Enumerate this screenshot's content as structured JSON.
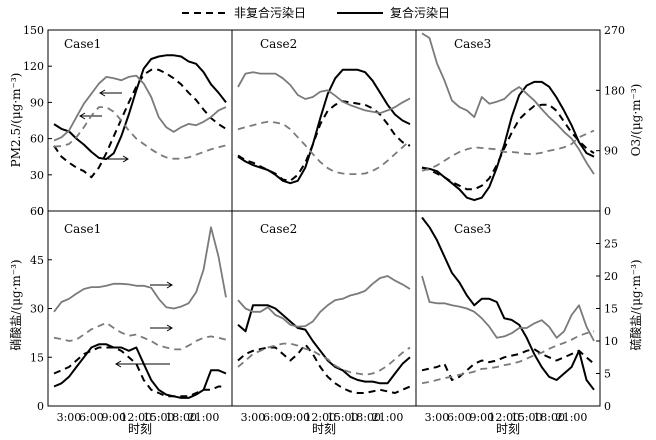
{
  "legend": [
    {
      "label": "非复合污染日",
      "style": "dashed"
    },
    {
      "label": "复合污染日",
      "style": "solid"
    }
  ],
  "colors": {
    "black": "#000000",
    "gray": "#7a7a7a"
  },
  "chart_data": [
    {
      "type": "line",
      "title": "",
      "xlabel": "时刻",
      "ylabel_left": "PM2.5/(μg·m⁻³)",
      "ylabel_right": "O3/(μg·m⁻³)",
      "ylim_left": [
        0,
        150
      ],
      "ylim_right": [
        0,
        270
      ],
      "yticks_left": [
        0,
        30,
        60,
        90,
        120,
        150
      ],
      "yticks_right": [
        0,
        90,
        180,
        270
      ],
      "x": [
        1,
        2,
        3,
        4,
        5,
        6,
        7,
        8,
        9,
        10,
        11,
        12,
        13,
        14,
        15,
        16,
        17,
        18,
        19,
        20,
        21,
        22,
        23,
        24
      ],
      "panels": [
        {
          "name": "Case1",
          "series": [
            {
              "name": "PM2.5 非复合污染日",
              "axis": "left",
              "color": "black",
              "style": "dashed",
              "values": [
                54,
                45,
                40,
                36,
                33,
                28,
                36,
                48,
                62,
                76,
                90,
                103,
                113,
                117,
                117,
                114,
                110,
                105,
                98,
                92,
                84,
                77,
                72,
                68
              ]
            },
            {
              "name": "PM2.5 复合污染日",
              "axis": "left",
              "color": "black",
              "style": "solid",
              "values": [
                72,
                68,
                66,
                60,
                55,
                49,
                44,
                43,
                48,
                62,
                80,
                100,
                118,
                126,
                128,
                129,
                129,
                128,
                124,
                122,
                115,
                105,
                98,
                90
              ]
            },
            {
              "name": "O3 非复合污染日",
              "axis": "right",
              "color": "gray",
              "style": "dashed",
              "values": [
                96,
                97,
                100,
                110,
                125,
                142,
                155,
                155,
                148,
                135,
                120,
                108,
                100,
                92,
                85,
                80,
                78,
                78,
                80,
                84,
                88,
                92,
                95,
                98
              ]
            },
            {
              "name": "O3 复合污染日",
              "axis": "right",
              "color": "gray",
              "style": "solid",
              "values": [
                105,
                110,
                120,
                140,
                160,
                175,
                190,
                200,
                198,
                195,
                200,
                202,
                190,
                170,
                140,
                125,
                118,
                125,
                130,
                128,
                133,
                140,
                150,
                155
              ]
            }
          ]
        },
        {
          "name": "Case2",
          "series": [
            {
              "name": "PM2.5 非复合污染日",
              "axis": "left",
              "color": "black",
              "style": "dashed",
              "values": [
                46,
                42,
                40,
                37,
                34,
                31,
                26,
                25,
                30,
                40,
                55,
                72,
                83,
                88,
                91,
                90,
                89,
                88,
                85,
                80,
                72,
                63,
                57,
                54
              ]
            },
            {
              "name": "PM2.5 复合污染日",
              "axis": "left",
              "color": "black",
              "style": "solid",
              "values": [
                45,
                41,
                38,
                36,
                34,
                30,
                25,
                23,
                25,
                36,
                55,
                77,
                97,
                110,
                117,
                117,
                117,
                115,
                108,
                98,
                88,
                80,
                75,
                72
              ]
            },
            {
              "name": "O3 非复合污染日",
              "axis": "right",
              "color": "gray",
              "style": "dashed",
              "values": [
                122,
                125,
                128,
                131,
                133,
                132,
                130,
                122,
                110,
                98,
                85,
                73,
                64,
                58,
                56,
                55,
                55,
                56,
                60,
                66,
                75,
                85,
                95,
                105
              ]
            },
            {
              "name": "O3 复合污染日",
              "axis": "right",
              "color": "gray",
              "style": "solid",
              "values": [
                185,
                205,
                207,
                205,
                205,
                205,
                198,
                188,
                173,
                167,
                170,
                178,
                180,
                172,
                163,
                158,
                154,
                150,
                148,
                146,
                150,
                155,
                162,
                168
              ]
            }
          ]
        },
        {
          "name": "Case3",
          "series": [
            {
              "name": "PM2.5 非复合污染日",
              "axis": "left",
              "color": "black",
              "style": "dashed",
              "values": [
                36,
                34,
                31,
                28,
                24,
                21,
                18,
                18,
                21,
                27,
                38,
                52,
                65,
                76,
                82,
                87,
                88,
                88,
                83,
                74,
                65,
                58,
                52,
                48
              ]
            },
            {
              "name": "PM2.5 复合污染日",
              "axis": "left",
              "color": "black",
              "style": "solid",
              "values": [
                36,
                35,
                33,
                28,
                23,
                18,
                11,
                9,
                11,
                20,
                36,
                55,
                78,
                96,
                104,
                107,
                107,
                103,
                94,
                83,
                71,
                57,
                48,
                45
              ]
            },
            {
              "name": "O3 非复合污染日",
              "axis": "right",
              "color": "gray",
              "style": "dashed",
              "values": [
                60,
                63,
                68,
                75,
                82,
                88,
                92,
                95,
                94,
                93,
                92,
                88,
                88,
                87,
                85,
                85,
                87,
                90,
                92,
                95,
                100,
                110,
                115,
                120
              ]
            },
            {
              "name": "O3 复合污染日",
              "axis": "right",
              "color": "gray",
              "style": "solid",
              "values": [
                265,
                258,
                220,
                195,
                165,
                155,
                150,
                140,
                170,
                160,
                163,
                167,
                178,
                185,
                175,
                165,
                152,
                140,
                130,
                118,
                108,
                92,
                72,
                55
              ]
            }
          ]
        }
      ]
    },
    {
      "type": "line",
      "title": "",
      "xlabel": "时刻",
      "ylabel_left": "硝酸盐/(μg·m⁻³)",
      "ylabel_right": "硫酸盐/(μg·m⁻³)",
      "ylim_left": [
        0,
        60
      ],
      "ylim_right": [
        0,
        30
      ],
      "yticks_left": [
        0,
        15,
        30,
        45,
        60
      ],
      "yticks_right": [
        0,
        5,
        10,
        15,
        20,
        25
      ],
      "x": [
        1,
        2,
        3,
        4,
        5,
        6,
        7,
        8,
        9,
        10,
        11,
        12,
        13,
        14,
        15,
        16,
        17,
        18,
        19,
        20,
        21,
        22,
        23,
        24
      ],
      "xticks": [
        "3:00",
        "6:00",
        "9:00",
        "12:00",
        "15:00",
        "18:00",
        "21:00"
      ],
      "panels": [
        {
          "name": "Case1",
          "series": [
            {
              "name": "硝酸盐 非复合污染日",
              "axis": "left",
              "color": "black",
              "style": "dashed",
              "values": [
                10,
                11,
                12,
                14,
                16,
                17,
                18,
                18,
                18,
                17,
                15,
                13,
                8,
                5,
                4,
                3,
                3,
                3,
                3,
                4,
                5,
                5,
                6,
                6
              ]
            },
            {
              "name": "硝酸盐 复合污染日",
              "axis": "left",
              "color": "black",
              "style": "solid",
              "values": [
                6,
                7,
                9,
                12,
                15,
                18,
                19,
                19,
                18,
                18,
                17,
                18,
                13,
                8,
                5,
                3.5,
                3,
                2.5,
                2.5,
                3.5,
                5,
                11,
                11,
                10
              ]
            },
            {
              "name": "硫酸盐 非复合污染日",
              "axis": "right",
              "color": "gray",
              "style": "dashed",
              "values": [
                10.5,
                10.3,
                10,
                10.2,
                11,
                11.8,
                12.3,
                12.8,
                12,
                11.3,
                10.8,
                11,
                10.5,
                10,
                9.3,
                9,
                8.7,
                8.7,
                9.3,
                10,
                10.5,
                10.7,
                10.5,
                10.2
              ]
            },
            {
              "name": "硫酸盐 复合污染日",
              "axis": "right",
              "color": "gray",
              "style": "solid",
              "values": [
                14.5,
                16,
                16.5,
                17.3,
                18,
                18.3,
                18.3,
                18.5,
                18.8,
                18.8,
                18.7,
                18.5,
                18.5,
                18.2,
                16.5,
                15.2,
                15,
                15.3,
                15.8,
                17.5,
                21,
                27.5,
                23,
                16.7
              ]
            }
          ]
        },
        {
          "name": "Case2",
          "series": [
            {
              "name": "硝酸盐 非复合污染日",
              "axis": "left",
              "color": "black",
              "style": "dashed",
              "values": [
                14,
                16,
                17,
                17.5,
                18,
                18,
                16,
                14,
                16,
                19,
                16,
                12,
                9,
                7,
                5.5,
                4.5,
                4,
                4,
                4.5,
                5,
                4.5,
                4,
                5,
                6
              ]
            },
            {
              "name": "硝酸盐 复合污染日",
              "axis": "left",
              "color": "black",
              "style": "solid",
              "values": [
                25,
                23,
                31,
                31,
                31,
                30,
                28,
                26,
                24,
                23.5,
                20,
                17,
                14,
                12,
                11,
                9,
                8,
                7.5,
                7.5,
                7,
                7,
                10,
                13,
                15
              ]
            },
            {
              "name": "硫酸盐 非复合污染日",
              "axis": "right",
              "color": "gray",
              "style": "dashed",
              "values": [
                6,
                7,
                8,
                8.5,
                9,
                9.3,
                9.6,
                9.6,
                9.3,
                8.8,
                8.5,
                7.8,
                7.2,
                6.2,
                5.6,
                5.2,
                5,
                4.8,
                5,
                5.5,
                6.2,
                7.2,
                8.2,
                9
              ]
            },
            {
              "name": "硫酸盐 复合污染日",
              "axis": "right",
              "color": "gray",
              "style": "solid",
              "values": [
                16.3,
                15,
                14.5,
                14.5,
                15.2,
                14,
                13.5,
                12.5,
                12.2,
                12.3,
                13,
                14.5,
                15.5,
                16.3,
                16.5,
                17,
                17.3,
                17.7,
                18.8,
                19.7,
                20,
                19.3,
                18.7,
                18
              ]
            }
          ]
        },
        {
          "name": "Case3",
          "series": [
            {
              "name": "硝酸盐 非复合污染日",
              "axis": "left",
              "color": "black",
              "style": "dashed",
              "values": [
                11,
                11.5,
                12,
                13,
                8,
                9,
                11,
                13,
                14,
                13.5,
                14,
                15,
                15.5,
                16,
                17,
                17.5,
                16,
                15,
                14,
                15,
                16,
                17,
                15,
                13
              ]
            },
            {
              "name": "硝酸盐 复合污染日",
              "axis": "left",
              "color": "black",
              "style": "solid",
              "values": [
                58,
                55,
                51,
                46,
                41,
                38,
                34,
                31,
                33,
                33,
                32,
                27,
                26.5,
                25,
                21,
                16,
                12,
                9,
                8,
                10,
                12,
                17,
                8,
                5
              ]
            },
            {
              "name": "硫酸盐 非复合污染日",
              "axis": "right",
              "color": "gray",
              "style": "dashed",
              "values": [
                3.5,
                3.7,
                4,
                4.3,
                4.5,
                4.8,
                5,
                5.3,
                5.7,
                5.8,
                6,
                6.3,
                6.5,
                6.8,
                7.3,
                7.8,
                8.2,
                8.8,
                9.3,
                9.7,
                10.2,
                10.8,
                11.2,
                11.5
              ]
            },
            {
              "name": "硫酸盐 复合污染日",
              "axis": "right",
              "color": "gray",
              "style": "solid",
              "values": [
                20,
                16,
                15.8,
                15.8,
                15.5,
                15.3,
                15,
                14.5,
                13.5,
                12.2,
                10.5,
                10.7,
                11.2,
                12,
                12,
                12.7,
                13.2,
                12.2,
                10.5,
                11.5,
                14,
                15.5,
                12.2,
                10
              ]
            }
          ]
        }
      ]
    }
  ]
}
